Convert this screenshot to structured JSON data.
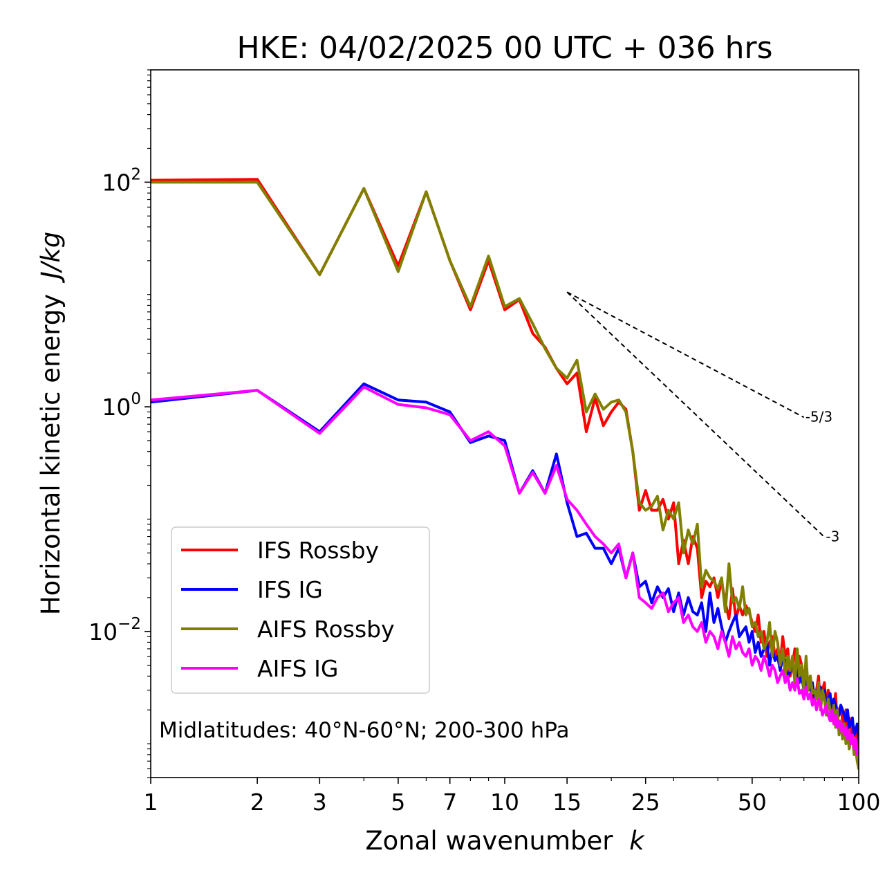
{
  "chart_data": {
    "type": "line",
    "title": "HKE: 04/02/2025 00 UTC + 036 hrs",
    "xlabel": "Zonal wavenumber",
    "xlabel_var": "k",
    "ylabel": "Horizontal kinetic energy",
    "ylabel_unit": "J/kg",
    "xscale": "log",
    "yscale": "log",
    "xlim": [
      1,
      100
    ],
    "ylim": [
      0.0005,
      1000
    ],
    "grid": false,
    "legend_position": "lower-left",
    "x_ticks": [
      1,
      2,
      3,
      5,
      7,
      10,
      15,
      25,
      50,
      100
    ],
    "x_tick_labels": [
      "1",
      "2",
      "3",
      "5",
      "7",
      "10",
      "15",
      "25",
      "50",
      "100"
    ],
    "y_ticks": [
      {
        "value": 0.01,
        "base": "10",
        "exp": "−2"
      },
      {
        "value": 1,
        "base": "10",
        "exp": "0"
      },
      {
        "value": 100,
        "base": "10",
        "exp": "2"
      }
    ],
    "annotation": "Midlatitudes: 40°N-60°N; 200-300 hPa",
    "reference_lines": [
      {
        "label": "-5/3",
        "slope": -1.6667,
        "x": [
          15,
          70
        ],
        "y0": 10.5
      },
      {
        "label": "-3",
        "slope": -3,
        "x": [
          15,
          80
        ],
        "y0": 10.5
      }
    ],
    "series": [
      {
        "name": "IFS Rossby",
        "color": "#ff0000",
        "x": [
          1,
          2,
          3,
          4,
          5,
          6,
          7,
          8,
          9,
          10,
          11,
          12,
          13,
          14,
          15,
          16,
          17,
          18,
          19,
          20,
          21,
          22,
          23,
          24,
          25,
          26,
          27,
          28,
          29,
          30,
          31,
          32,
          33,
          34,
          35,
          36,
          37,
          38,
          39,
          40,
          41,
          42,
          43,
          44,
          45,
          46,
          47,
          48,
          49,
          50,
          51,
          52,
          53,
          54,
          55,
          56,
          57,
          58,
          59,
          60,
          61,
          62,
          63,
          64,
          65,
          66,
          67,
          68,
          69,
          70,
          71,
          72,
          73,
          74,
          75,
          76,
          77,
          78,
          79,
          80,
          81,
          82,
          83,
          84,
          85,
          86,
          87,
          88,
          89,
          90,
          91,
          92,
          93,
          94,
          95,
          96,
          97,
          98,
          99,
          100
        ],
        "y": [
          104,
          106,
          15,
          88,
          18,
          82,
          20,
          7.3,
          20,
          7.3,
          9.0,
          4.5,
          3.4,
          2.2,
          1.6,
          2.0,
          0.6,
          1.2,
          0.68,
          0.9,
          1.1,
          0.95,
          0.4,
          0.12,
          0.18,
          0.12,
          0.12,
          0.15,
          0.1,
          0.14,
          0.04,
          0.065,
          0.04,
          0.07,
          0.055,
          0.02,
          0.028,
          0.025,
          0.03,
          0.02,
          0.028,
          0.018,
          0.013,
          0.024,
          0.013,
          0.017,
          0.014,
          0.017,
          0.015,
          0.012,
          0.01,
          0.014,
          0.008,
          0.01,
          0.006,
          0.008,
          0.009,
          0.006,
          0.007,
          0.005,
          0.009,
          0.006,
          0.007,
          0.004,
          0.005,
          0.007,
          0.004,
          0.006,
          0.005,
          0.0035,
          0.005,
          0.003,
          0.004,
          0.0025,
          0.003,
          0.003,
          0.004,
          0.002,
          0.003,
          0.0035,
          0.002,
          0.003,
          0.0025,
          0.0018,
          0.002,
          0.0028,
          0.0015,
          0.002,
          0.0022,
          0.0016,
          0.0014,
          0.002,
          0.0012,
          0.0017,
          0.0015,
          0.0011,
          0.0012,
          0.0014,
          0.0009,
          0.0011
        ]
      },
      {
        "name": "IFS IG",
        "color": "#0000ff",
        "x": [
          1,
          2,
          3,
          4,
          5,
          6,
          7,
          8,
          9,
          10,
          11,
          12,
          13,
          14,
          15,
          16,
          17,
          18,
          19,
          20,
          21,
          22,
          23,
          24,
          25,
          26,
          27,
          28,
          29,
          30,
          31,
          32,
          33,
          34,
          35,
          36,
          37,
          38,
          39,
          40,
          41,
          42,
          43,
          44,
          45,
          46,
          47,
          48,
          49,
          50,
          51,
          52,
          53,
          54,
          55,
          56,
          57,
          58,
          59,
          60,
          61,
          62,
          63,
          64,
          65,
          66,
          67,
          68,
          69,
          70,
          71,
          72,
          73,
          74,
          75,
          76,
          77,
          78,
          79,
          80,
          81,
          82,
          83,
          84,
          85,
          86,
          87,
          88,
          89,
          90,
          91,
          92,
          93,
          94,
          95,
          96,
          97,
          98,
          99,
          100
        ],
        "y": [
          1.1,
          1.4,
          0.6,
          1.6,
          1.15,
          1.1,
          0.9,
          0.48,
          0.55,
          0.5,
          0.17,
          0.27,
          0.17,
          0.38,
          0.14,
          0.07,
          0.075,
          0.055,
          0.055,
          0.04,
          0.055,
          0.03,
          0.05,
          0.025,
          0.028,
          0.018,
          0.025,
          0.02,
          0.024,
          0.015,
          0.022,
          0.014,
          0.02,
          0.015,
          0.014,
          0.018,
          0.01,
          0.022,
          0.012,
          0.016,
          0.011,
          0.008,
          0.01,
          0.012,
          0.014,
          0.009,
          0.01,
          0.011,
          0.008,
          0.01,
          0.0065,
          0.008,
          0.006,
          0.007,
          0.008,
          0.005,
          0.007,
          0.0055,
          0.006,
          0.0045,
          0.006,
          0.0055,
          0.0038,
          0.0045,
          0.005,
          0.004,
          0.0045,
          0.0035,
          0.004,
          0.003,
          0.0035,
          0.0038,
          0.003,
          0.0035,
          0.0025,
          0.003,
          0.0028,
          0.0032,
          0.0025,
          0.003,
          0.0022,
          0.0025,
          0.0028,
          0.002,
          0.0025,
          0.0022,
          0.002,
          0.0018,
          0.0022,
          0.002,
          0.0018,
          0.0016,
          0.002,
          0.0014,
          0.0015,
          0.0017,
          0.0012,
          0.0013,
          0.0015,
          0.0011
        ]
      },
      {
        "name": "AIFS Rossby",
        "color": "#808000",
        "x": [
          1,
          2,
          3,
          4,
          5,
          6,
          7,
          8,
          9,
          10,
          11,
          12,
          13,
          14,
          15,
          16,
          17,
          18,
          19,
          20,
          21,
          22,
          23,
          24,
          25,
          26,
          27,
          28,
          29,
          30,
          31,
          32,
          33,
          34,
          35,
          36,
          37,
          38,
          39,
          40,
          41,
          42,
          43,
          44,
          45,
          46,
          47,
          48,
          49,
          50,
          51,
          52,
          53,
          54,
          55,
          56,
          57,
          58,
          59,
          60,
          61,
          62,
          63,
          64,
          65,
          66,
          67,
          68,
          69,
          70,
          71,
          72,
          73,
          74,
          75,
          76,
          77,
          78,
          79,
          80,
          81,
          82,
          83,
          84,
          85,
          86,
          87,
          88,
          89,
          90,
          91,
          92,
          93,
          94,
          95,
          96,
          97,
          98,
          99,
          100
        ],
        "y": [
          100,
          100,
          15,
          88,
          16,
          82,
          20,
          7.8,
          22,
          7.8,
          9.2,
          5.5,
          3.3,
          2.2,
          1.8,
          2.6,
          0.9,
          1.3,
          0.95,
          1.1,
          1.15,
          0.9,
          0.4,
          0.14,
          0.12,
          0.13,
          0.16,
          0.08,
          0.12,
          0.1,
          0.14,
          0.05,
          0.08,
          0.06,
          0.09,
          0.025,
          0.035,
          0.03,
          0.028,
          0.024,
          0.03,
          0.015,
          0.04,
          0.018,
          0.02,
          0.016,
          0.025,
          0.014,
          0.016,
          0.011,
          0.012,
          0.009,
          0.01,
          0.007,
          0.008,
          0.012,
          0.006,
          0.01,
          0.008,
          0.005,
          0.007,
          0.004,
          0.006,
          0.0045,
          0.006,
          0.0035,
          0.007,
          0.004,
          0.005,
          0.003,
          0.006,
          0.003,
          0.004,
          0.0028,
          0.003,
          0.0025,
          0.0035,
          0.002,
          0.003,
          0.0025,
          0.0018,
          0.0025,
          0.002,
          0.0016,
          0.0022,
          0.0014,
          0.002,
          0.0012,
          0.0016,
          0.0011,
          0.0015,
          0.001,
          0.0013,
          0.0009,
          0.0011,
          0.0012,
          0.0008,
          0.0009,
          0.0007,
          0.0006
        ]
      },
      {
        "name": "AIFS IG",
        "color": "#ff00ff",
        "x": [
          1,
          2,
          3,
          4,
          5,
          6,
          7,
          8,
          9,
          10,
          11,
          12,
          13,
          14,
          15,
          16,
          17,
          18,
          19,
          20,
          21,
          22,
          23,
          24,
          25,
          26,
          27,
          28,
          29,
          30,
          31,
          32,
          33,
          34,
          35,
          36,
          37,
          38,
          39,
          40,
          41,
          42,
          43,
          44,
          45,
          46,
          47,
          48,
          49,
          50,
          51,
          52,
          53,
          54,
          55,
          56,
          57,
          58,
          59,
          60,
          61,
          62,
          63,
          64,
          65,
          66,
          67,
          68,
          69,
          70,
          71,
          72,
          73,
          74,
          75,
          76,
          77,
          78,
          79,
          80,
          81,
          82,
          83,
          84,
          85,
          86,
          87,
          88,
          89,
          90,
          91,
          92,
          93,
          94,
          95,
          96,
          97,
          98,
          99,
          100
        ],
        "y": [
          1.15,
          1.4,
          0.58,
          1.5,
          1.05,
          0.98,
          0.85,
          0.5,
          0.6,
          0.45,
          0.17,
          0.26,
          0.17,
          0.3,
          0.15,
          0.12,
          0.09,
          0.07,
          0.06,
          0.05,
          0.06,
          0.03,
          0.05,
          0.02,
          0.018,
          0.016,
          0.02,
          0.022,
          0.015,
          0.018,
          0.02,
          0.012,
          0.014,
          0.011,
          0.01,
          0.012,
          0.008,
          0.01,
          0.009,
          0.007,
          0.01,
          0.008,
          0.006,
          0.009,
          0.007,
          0.008,
          0.0065,
          0.006,
          0.007,
          0.005,
          0.006,
          0.0055,
          0.0045,
          0.006,
          0.005,
          0.004,
          0.005,
          0.0045,
          0.0035,
          0.004,
          0.0045,
          0.0035,
          0.004,
          0.003,
          0.0035,
          0.003,
          0.0038,
          0.0028,
          0.003,
          0.0025,
          0.0032,
          0.0025,
          0.0028,
          0.0022,
          0.0025,
          0.002,
          0.0025,
          0.0022,
          0.0018,
          0.002,
          0.0022,
          0.0018,
          0.0016,
          0.002,
          0.0015,
          0.0018,
          0.0014,
          0.0016,
          0.0013,
          0.0015,
          0.0012,
          0.0014,
          0.0011,
          0.0013,
          0.001,
          0.0012,
          0.0009,
          0.0011,
          0.0008,
          0.0009
        ]
      }
    ]
  }
}
